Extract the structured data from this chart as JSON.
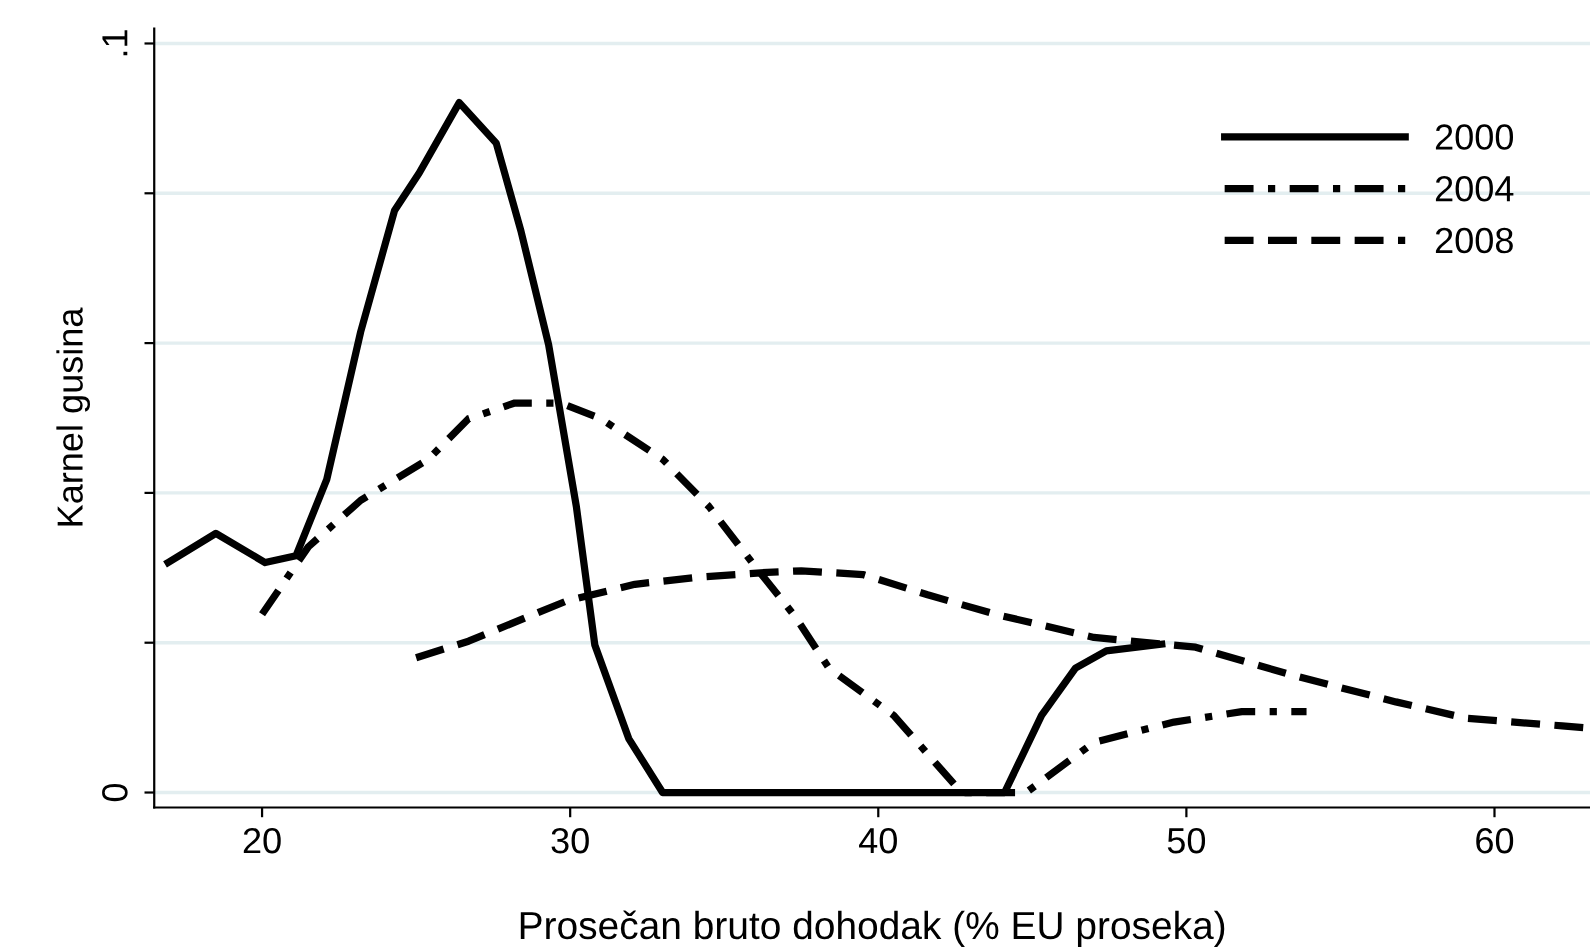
{
  "chart_data": {
    "type": "line",
    "xlabel": "Prosečan bruto dohodak (% EU proseka)",
    "ylabel": "Karnel gusina",
    "xlim": [
      16.5,
      63.1
    ],
    "xticks": [
      20,
      30,
      40,
      50,
      60
    ],
    "ylim": [
      -0.002,
      0.102
    ],
    "yticks": [
      {
        "value": 0,
        "label": "0"
      },
      {
        "value": 0.02,
        "label": null
      },
      {
        "value": 0.04,
        "label": null
      },
      {
        "value": 0.06,
        "label": null
      },
      {
        "value": 0.08,
        "label": null
      },
      {
        "value": 0.1,
        "label": ".1"
      }
    ],
    "grid": "y",
    "legend": "top right",
    "marker": "none",
    "series": [
      {
        "name": "2000",
        "color": "#000000",
        "line_style": "solid",
        "x": [
          16.95,
          18.5,
          20.1,
          21.1,
          22.1,
          23.2,
          24.3,
          25.1,
          26.4,
          27.6,
          28.4,
          29.3,
          30.2,
          30.8,
          31.9,
          33.0,
          44.1,
          45.3,
          46.4,
          47.4,
          49.2
        ],
        "values": [
          0.0307,
          0.0346,
          0.0307,
          0.0316,
          0.0418,
          0.0615,
          0.0777,
          0.0827,
          0.0921,
          0.0867,
          0.075,
          0.0598,
          0.0382,
          0.0197,
          0.0072,
          0,
          0,
          0.0103,
          0.0166,
          0.0189,
          0.0198
        ]
      },
      {
        "name": "2004",
        "color": "#000000",
        "line_style": "dashdot",
        "x": [
          20.0,
          21.5,
          23.2,
          25.4,
          26.7,
          28.2,
          29.7,
          31.0,
          33.0,
          34.5,
          36.0,
          37.3,
          38.4,
          40.5,
          42.7,
          44.8,
          47.0,
          49.6,
          51.8,
          53.9
        ],
        "values": [
          0.0238,
          0.0328,
          0.039,
          0.0445,
          0.0499,
          0.052,
          0.052,
          0.0499,
          0.0445,
          0.0382,
          0.0302,
          0.0235,
          0.0166,
          0.0103,
          0,
          0,
          0.0067,
          0.0094,
          0.0108,
          0.0108
        ]
      },
      {
        "name": "2008",
        "color": "#000000",
        "line_style": "dashed",
        "x": [
          25.0,
          26.7,
          29.9,
          32.1,
          34.3,
          36.4,
          37.5,
          39.5,
          41.6,
          43.8,
          47.0,
          50.3,
          53.5,
          56.8,
          59.1,
          62.2,
          63.1
        ],
        "values": [
          0.018,
          0.0202,
          0.0256,
          0.0278,
          0.0288,
          0.0294,
          0.0296,
          0.0291,
          0.0264,
          0.0238,
          0.0207,
          0.0194,
          0.0156,
          0.0121,
          0.0099,
          0.0089,
          0.0086
        ]
      }
    ]
  }
}
